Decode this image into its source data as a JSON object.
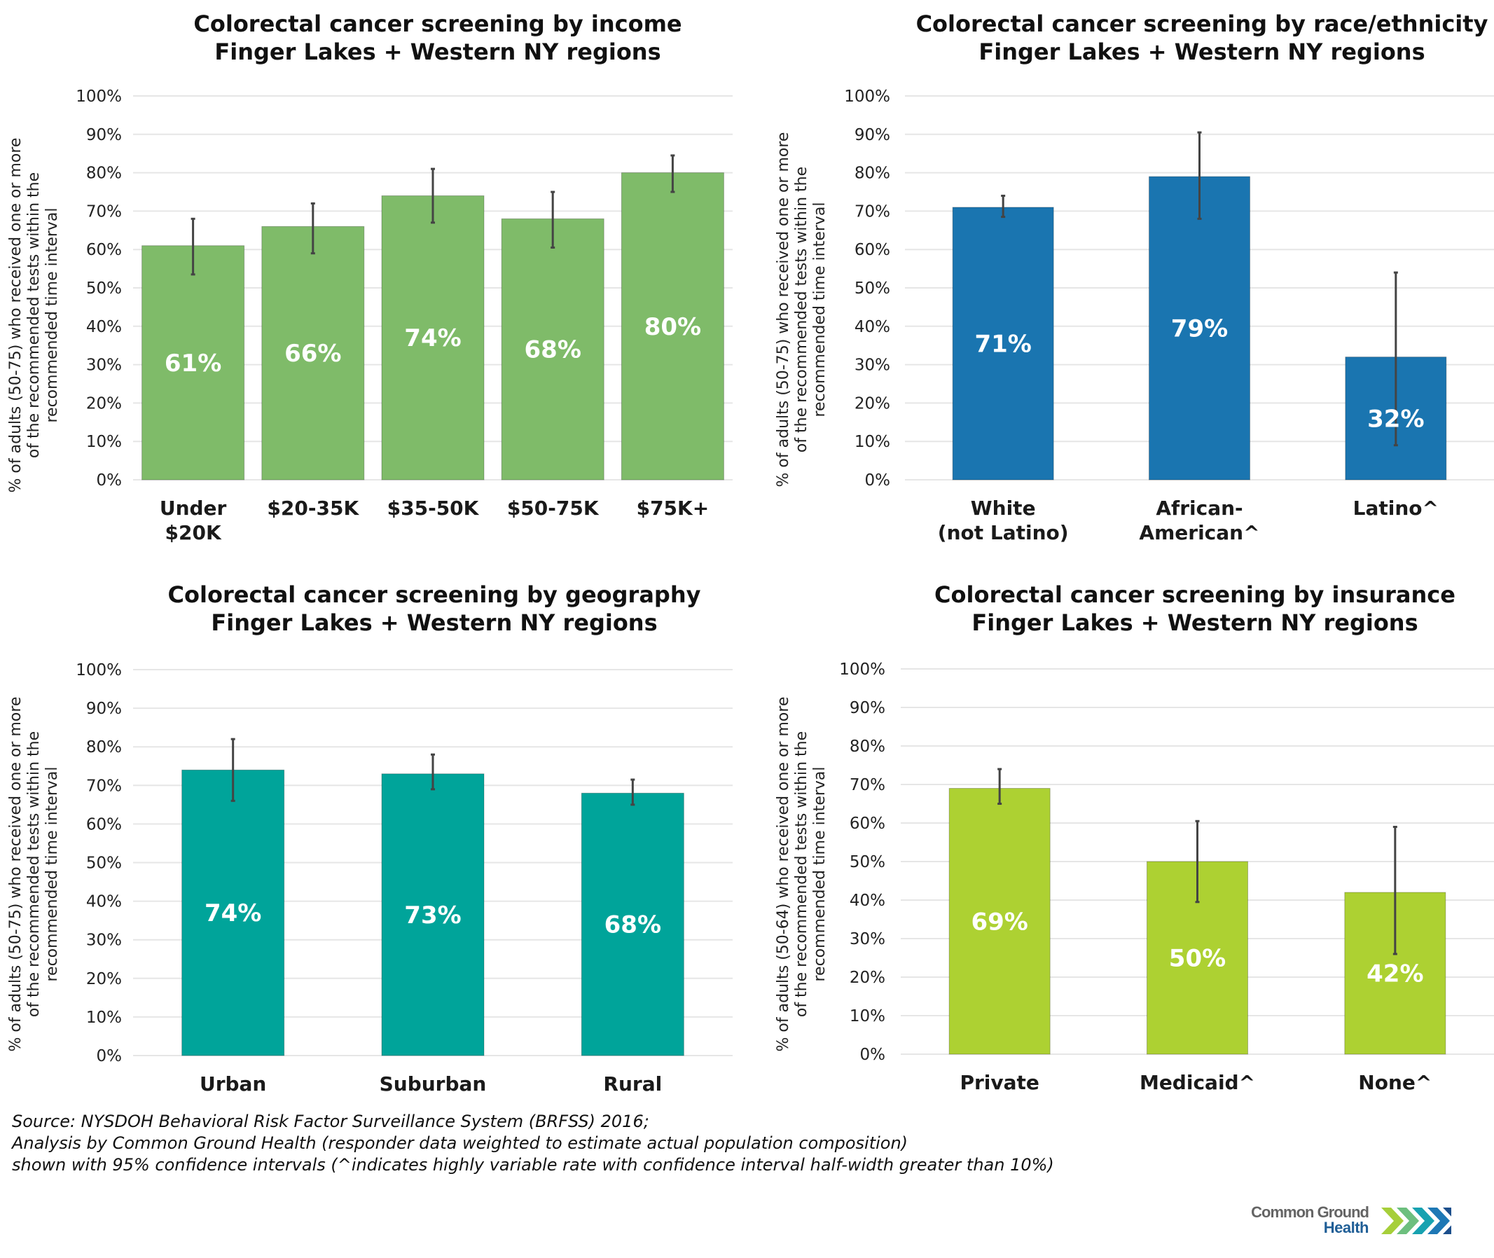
{
  "chart_data": [
    {
      "type": "bar",
      "id": "income",
      "title": [
        "Colorectal cancer screening by income",
        "Finger Lakes + Western NY regions"
      ],
      "ylabel": [
        "% of adults (50-75) who received one or more",
        "of the recommended tests within the",
        "recommended time interval"
      ],
      "xlabel": "",
      "categories": [
        [
          "Under",
          "$20K"
        ],
        [
          "$20-35K"
        ],
        [
          "$35-50K"
        ],
        [
          "$50-75K"
        ],
        [
          "$75K+"
        ]
      ],
      "values": [
        61,
        66,
        74,
        68,
        80
      ],
      "data_labels": [
        "61%",
        "66%",
        "74%",
        "68%",
        "80%"
      ],
      "error_low": [
        53.5,
        59,
        67,
        60.5,
        75
      ],
      "error_high": [
        68,
        72,
        81,
        75,
        84.5
      ],
      "ylim": [
        0,
        100
      ],
      "yticks": [
        "0%",
        "10%",
        "20%",
        "30%",
        "40%",
        "50%",
        "60%",
        "70%",
        "80%",
        "90%",
        "100%"
      ],
      "grid": true,
      "color": "#7fbb69"
    },
    {
      "type": "bar",
      "id": "race",
      "title": [
        "Colorectal cancer screening by race/ethnicity",
        "Finger Lakes + Western NY regions"
      ],
      "ylabel": [
        "% of adults (50-75) who received one or more",
        "of the recommended tests within the",
        "recommended time interval"
      ],
      "xlabel": "",
      "categories": [
        [
          "White",
          "(not Latino)"
        ],
        [
          "African-",
          "American^"
        ],
        [
          "Latino^"
        ]
      ],
      "values": [
        71,
        79,
        32
      ],
      "data_labels": [
        "71%",
        "79%",
        "32%"
      ],
      "error_low": [
        68.5,
        68,
        9
      ],
      "error_high": [
        74,
        90.5,
        54
      ],
      "ylim": [
        0,
        100
      ],
      "yticks": [
        "0%",
        "10%",
        "20%",
        "30%",
        "40%",
        "50%",
        "60%",
        "70%",
        "80%",
        "90%",
        "100%"
      ],
      "grid": true,
      "color": "#1a75b0"
    },
    {
      "type": "bar",
      "id": "geography",
      "title": [
        "Colorectal cancer screening by geography",
        "Finger Lakes + Western NY regions"
      ],
      "ylabel": [
        "% of adults (50-75) who received one or more",
        "of the recommended tests within the",
        "recommended time interval"
      ],
      "xlabel": "",
      "categories": [
        [
          "Urban"
        ],
        [
          "Suburban"
        ],
        [
          "Rural"
        ]
      ],
      "values": [
        74,
        73,
        68
      ],
      "data_labels": [
        "74%",
        "73%",
        "68%"
      ],
      "error_low": [
        66,
        69,
        65
      ],
      "error_high": [
        82,
        78,
        71.5
      ],
      "ylim": [
        0,
        100
      ],
      "yticks": [
        "0%",
        "10%",
        "20%",
        "30%",
        "40%",
        "50%",
        "60%",
        "70%",
        "80%",
        "90%",
        "100%"
      ],
      "grid": true,
      "color": "#00a49a"
    },
    {
      "type": "bar",
      "id": "insurance",
      "title": [
        "Colorectal cancer screening by insurance",
        "Finger Lakes + Western NY regions"
      ],
      "ylabel": [
        "% of adults (50-64) who received one or more",
        "of the recommended tests within the",
        "recommended time interval"
      ],
      "xlabel": "",
      "categories": [
        [
          "Private"
        ],
        [
          "Medicaid^"
        ],
        [
          "None^"
        ]
      ],
      "values": [
        69,
        50,
        42
      ],
      "data_labels": [
        "69%",
        "50%",
        "42%"
      ],
      "error_low": [
        65,
        39.5,
        26
      ],
      "error_high": [
        74,
        60.5,
        59
      ],
      "ylim": [
        0,
        100
      ],
      "yticks": [
        "0%",
        "10%",
        "20%",
        "30%",
        "40%",
        "50%",
        "60%",
        "70%",
        "80%",
        "90%",
        "100%"
      ],
      "grid": true,
      "color": "#add132"
    }
  ],
  "footer": {
    "lines": [
      "Source: NYSDOH Behavioral Risk Factor Surveillance System (BRFSS) 2016;",
      "Analysis by Common Ground Health (responder data weighted to estimate actual population composition)",
      "shown with 95% confidence intervals (^indicates highly variable rate with confidence interval half-width greater than 10%)"
    ]
  },
  "logo": {
    "line1": "Common Ground",
    "line2": "Health",
    "chevron_colors": [
      "#a6cf3a",
      "#6dbf7e",
      "#17a2b0",
      "#1e78b5",
      "#1c4f8c"
    ]
  }
}
